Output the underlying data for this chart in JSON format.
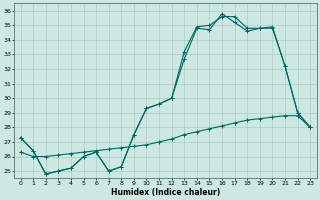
{
  "xlabel": "Humidex (Indice chaleur)",
  "bg_color": "#cce8e0",
  "grid_color": "#aacccc",
  "line_color": "#006666",
  "xlim": [
    -0.5,
    23.5
  ],
  "ylim": [
    24.5,
    36.5
  ],
  "yticks": [
    25,
    26,
    27,
    28,
    29,
    30,
    31,
    32,
    33,
    34,
    35,
    36
  ],
  "xticks": [
    0,
    1,
    2,
    3,
    4,
    5,
    6,
    7,
    8,
    9,
    10,
    11,
    12,
    13,
    14,
    15,
    16,
    17,
    18,
    19,
    20,
    21,
    22,
    23
  ],
  "line1": {
    "x": [
      0,
      1,
      2,
      3,
      4,
      5,
      6,
      7,
      8,
      9,
      10,
      11,
      12,
      13,
      14,
      15,
      16,
      17,
      18,
      19,
      20,
      21,
      22,
      23
    ],
    "y": [
      27.3,
      26.4,
      24.8,
      25.0,
      25.2,
      26.0,
      26.3,
      25.0,
      25.3,
      27.5,
      29.3,
      29.6,
      30.0,
      32.7,
      34.8,
      34.7,
      35.8,
      35.2,
      34.6,
      34.8,
      34.8,
      32.2,
      29.0,
      28.0
    ]
  },
  "line2": {
    "x": [
      0,
      1,
      2,
      3,
      4,
      5,
      6,
      7,
      8,
      9,
      10,
      11,
      12,
      13,
      14,
      15,
      16,
      17,
      18,
      19,
      20,
      21,
      22,
      23
    ],
    "y": [
      27.3,
      26.4,
      24.8,
      25.0,
      25.2,
      26.0,
      26.3,
      25.0,
      25.3,
      27.5,
      29.3,
      29.6,
      30.0,
      33.2,
      34.9,
      35.0,
      35.6,
      35.6,
      34.8,
      34.8,
      34.9,
      32.2,
      29.0,
      28.0
    ]
  },
  "line3": {
    "x": [
      0,
      1,
      2,
      3,
      4,
      5,
      6,
      7,
      8,
      9,
      10,
      11,
      12,
      13,
      14,
      15,
      16,
      17,
      18,
      19,
      20,
      21,
      22,
      23
    ],
    "y": [
      26.3,
      26.0,
      26.0,
      26.1,
      26.2,
      26.3,
      26.4,
      26.5,
      26.6,
      26.7,
      26.8,
      27.0,
      27.2,
      27.5,
      27.7,
      27.9,
      28.1,
      28.3,
      28.5,
      28.6,
      28.7,
      28.8,
      28.8,
      28.0
    ]
  }
}
